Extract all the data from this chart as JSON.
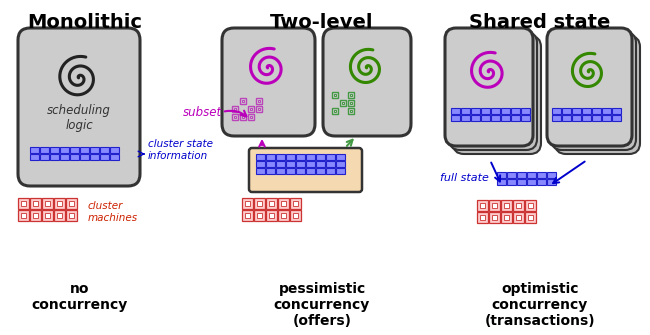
{
  "title_monolithic": "Monolithic",
  "title_twolevel": "Two-level",
  "title_sharedstate": "Shared state",
  "label_scheduling_logic": "scheduling\nlogic",
  "label_cluster_state": "cluster state\ninformation",
  "label_cluster_machines": "cluster\nmachines",
  "label_subset": "subset",
  "label_full_state": "full state",
  "label_no_concurrency": "no\nconcurrency",
  "label_pessimistic": "pessimistic\nconcurrency\n(offers)",
  "label_optimistic": "optimistic\nconcurrency\n(transactions)",
  "color_title": "#000000",
  "color_spiral_black": "#222222",
  "color_spiral_purple": "#bb00bb",
  "color_spiral_green": "#338800",
  "color_blue_label": "#0000cc",
  "color_purple_label": "#bb00bb",
  "color_red_label": "#cc2200",
  "color_box_fill": "#cccccc",
  "color_box_stroke": "#333333",
  "color_state_box_fill": "#f5d9b0",
  "color_state_box_stroke": "#333333",
  "color_blue_grid": "#3333cc",
  "color_red_grid": "#cc3333",
  "color_purple_mini": "#bb44bb",
  "color_green_mini": "#449944",
  "bg_color": "#ffffff"
}
